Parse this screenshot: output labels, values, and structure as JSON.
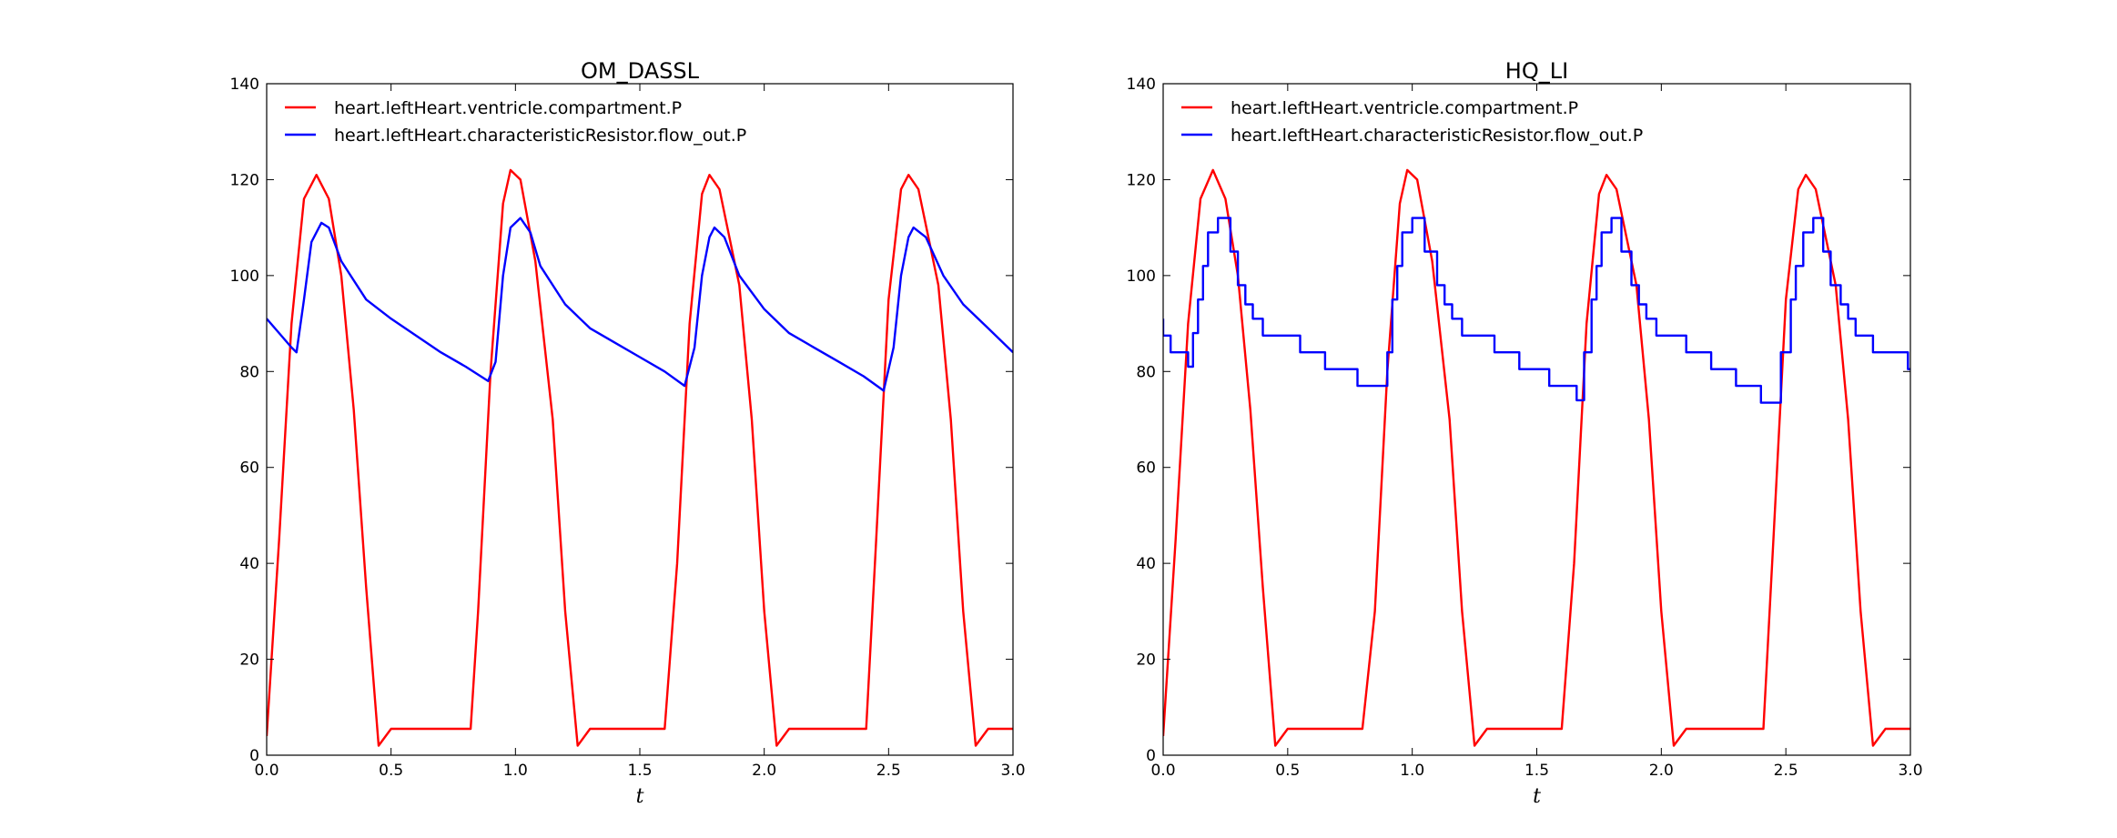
{
  "chart_data": [
    {
      "type": "line",
      "title": "OM_DASSL",
      "xlabel": "t",
      "ylabel": "",
      "xlim": [
        0.0,
        3.0
      ],
      "ylim": [
        0,
        140
      ],
      "xticks": [
        "0.0",
        "0.5",
        "1.0",
        "1.5",
        "2.0",
        "2.5",
        "3.0"
      ],
      "yticks": [
        "0",
        "20",
        "40",
        "60",
        "80",
        "100",
        "120",
        "140"
      ],
      "grid": false,
      "legend_position": "top-left",
      "series": [
        {
          "name": "heart.leftHeart.ventricle.compartment.P",
          "color": "#ff0000",
          "points": [
            [
              0.0,
              4
            ],
            [
              0.05,
              45
            ],
            [
              0.1,
              90
            ],
            [
              0.15,
              116
            ],
            [
              0.2,
              121
            ],
            [
              0.25,
              116
            ],
            [
              0.3,
              100
            ],
            [
              0.35,
              72
            ],
            [
              0.4,
              35
            ],
            [
              0.45,
              2
            ],
            [
              0.5,
              5.5
            ],
            [
              0.82,
              5.5
            ],
            [
              0.85,
              30
            ],
            [
              0.9,
              80
            ],
            [
              0.95,
              115
            ],
            [
              0.98,
              122
            ],
            [
              1.02,
              120
            ],
            [
              1.08,
              103
            ],
            [
              1.15,
              70
            ],
            [
              1.2,
              30
            ],
            [
              1.25,
              2
            ],
            [
              1.3,
              5.5
            ],
            [
              1.6,
              5.5
            ],
            [
              1.65,
              40
            ],
            [
              1.7,
              90
            ],
            [
              1.75,
              117
            ],
            [
              1.78,
              121
            ],
            [
              1.82,
              118
            ],
            [
              1.9,
              98
            ],
            [
              1.95,
              70
            ],
            [
              2.0,
              30
            ],
            [
              2.05,
              2
            ],
            [
              2.1,
              5.5
            ],
            [
              2.41,
              5.5
            ],
            [
              2.45,
              45
            ],
            [
              2.5,
              95
            ],
            [
              2.55,
              118
            ],
            [
              2.58,
              121
            ],
            [
              2.62,
              118
            ],
            [
              2.7,
              98
            ],
            [
              2.75,
              70
            ],
            [
              2.8,
              30
            ],
            [
              2.85,
              2
            ],
            [
              2.9,
              5.5
            ],
            [
              3.0,
              5.5
            ]
          ]
        },
        {
          "name": "heart.leftHeart.characteristicResistor.flow_out.P",
          "color": "#0000ff",
          "points": [
            [
              0.0,
              91
            ],
            [
              0.05,
              88
            ],
            [
              0.1,
              85
            ],
            [
              0.12,
              84
            ],
            [
              0.15,
              95
            ],
            [
              0.18,
              107
            ],
            [
              0.22,
              111
            ],
            [
              0.25,
              110
            ],
            [
              0.3,
              103
            ],
            [
              0.4,
              95
            ],
            [
              0.5,
              91
            ],
            [
              0.6,
              87.5
            ],
            [
              0.7,
              84
            ],
            [
              0.8,
              81
            ],
            [
              0.89,
              78
            ],
            [
              0.92,
              82
            ],
            [
              0.95,
              100
            ],
            [
              0.98,
              110
            ],
            [
              1.02,
              112
            ],
            [
              1.06,
              109
            ],
            [
              1.1,
              102
            ],
            [
              1.2,
              94
            ],
            [
              1.3,
              89
            ],
            [
              1.4,
              86
            ],
            [
              1.5,
              83
            ],
            [
              1.6,
              80
            ],
            [
              1.68,
              77
            ],
            [
              1.72,
              85
            ],
            [
              1.75,
              100
            ],
            [
              1.78,
              108
            ],
            [
              1.8,
              110
            ],
            [
              1.84,
              108
            ],
            [
              1.9,
              100
            ],
            [
              2.0,
              93
            ],
            [
              2.1,
              88
            ],
            [
              2.2,
              85
            ],
            [
              2.3,
              82
            ],
            [
              2.4,
              79
            ],
            [
              2.48,
              76
            ],
            [
              2.52,
              85
            ],
            [
              2.55,
              100
            ],
            [
              2.58,
              108
            ],
            [
              2.6,
              110
            ],
            [
              2.65,
              108
            ],
            [
              2.72,
              100
            ],
            [
              2.8,
              94
            ],
            [
              2.9,
              89
            ],
            [
              3.0,
              84
            ]
          ]
        }
      ]
    },
    {
      "type": "line",
      "title": "HQ_LI",
      "xlabel": "t",
      "ylabel": "",
      "xlim": [
        0.0,
        3.0
      ],
      "ylim": [
        0,
        140
      ],
      "xticks": [
        "0.0",
        "0.5",
        "1.0",
        "1.5",
        "2.0",
        "2.5",
        "3.0"
      ],
      "yticks": [
        "0",
        "20",
        "40",
        "60",
        "80",
        "100",
        "120",
        "140"
      ],
      "grid": false,
      "legend_position": "top-left",
      "series": [
        {
          "name": "heart.leftHeart.ventricle.compartment.P",
          "color": "#ff0000",
          "points": [
            [
              0.0,
              4
            ],
            [
              0.05,
              45
            ],
            [
              0.1,
              90
            ],
            [
              0.15,
              116
            ],
            [
              0.2,
              122
            ],
            [
              0.25,
              116
            ],
            [
              0.3,
              100
            ],
            [
              0.35,
              72
            ],
            [
              0.4,
              35
            ],
            [
              0.45,
              2
            ],
            [
              0.5,
              5.5
            ],
            [
              0.8,
              5.5
            ],
            [
              0.85,
              30
            ],
            [
              0.9,
              80
            ],
            [
              0.95,
              115
            ],
            [
              0.98,
              122
            ],
            [
              1.02,
              120
            ],
            [
              1.08,
              103
            ],
            [
              1.15,
              70
            ],
            [
              1.2,
              30
            ],
            [
              1.25,
              2
            ],
            [
              1.3,
              5.5
            ],
            [
              1.6,
              5.5
            ],
            [
              1.65,
              40
            ],
            [
              1.7,
              90
            ],
            [
              1.75,
              117
            ],
            [
              1.78,
              121
            ],
            [
              1.82,
              118
            ],
            [
              1.9,
              98
            ],
            [
              1.95,
              70
            ],
            [
              2.0,
              30
            ],
            [
              2.05,
              2
            ],
            [
              2.1,
              5.5
            ],
            [
              2.41,
              5.5
            ],
            [
              2.45,
              45
            ],
            [
              2.5,
              95
            ],
            [
              2.55,
              118
            ],
            [
              2.58,
              121
            ],
            [
              2.62,
              118
            ],
            [
              2.7,
              98
            ],
            [
              2.75,
              70
            ],
            [
              2.8,
              30
            ],
            [
              2.85,
              2
            ],
            [
              2.9,
              5.5
            ],
            [
              3.0,
              5.5
            ]
          ]
        },
        {
          "name": "heart.leftHeart.characteristicResistor.flow_out.P",
          "color": "#0000ff",
          "points": [
            [
              0.0,
              91
            ],
            [
              0.0,
              87.5
            ],
            [
              0.03,
              87.5
            ],
            [
              0.03,
              84
            ],
            [
              0.1,
              84
            ],
            [
              0.1,
              81
            ],
            [
              0.12,
              81
            ],
            [
              0.12,
              88
            ],
            [
              0.14,
              88
            ],
            [
              0.14,
              95
            ],
            [
              0.16,
              95
            ],
            [
              0.16,
              102
            ],
            [
              0.18,
              102
            ],
            [
              0.18,
              109
            ],
            [
              0.22,
              109
            ],
            [
              0.22,
              112
            ],
            [
              0.27,
              112
            ],
            [
              0.27,
              105
            ],
            [
              0.3,
              105
            ],
            [
              0.3,
              98
            ],
            [
              0.33,
              98
            ],
            [
              0.33,
              94
            ],
            [
              0.36,
              94
            ],
            [
              0.36,
              91
            ],
            [
              0.4,
              91
            ],
            [
              0.4,
              87.5
            ],
            [
              0.55,
              87.5
            ],
            [
              0.55,
              84
            ],
            [
              0.65,
              84
            ],
            [
              0.65,
              80.5
            ],
            [
              0.78,
              80.5
            ],
            [
              0.78,
              77
            ],
            [
              0.9,
              77
            ],
            [
              0.9,
              84
            ],
            [
              0.92,
              84
            ],
            [
              0.92,
              95
            ],
            [
              0.94,
              95
            ],
            [
              0.94,
              102
            ],
            [
              0.96,
              102
            ],
            [
              0.96,
              109
            ],
            [
              1.0,
              109
            ],
            [
              1.0,
              112
            ],
            [
              1.05,
              112
            ],
            [
              1.05,
              105
            ],
            [
              1.1,
              105
            ],
            [
              1.1,
              98
            ],
            [
              1.13,
              98
            ],
            [
              1.13,
              94
            ],
            [
              1.16,
              94
            ],
            [
              1.16,
              91
            ],
            [
              1.2,
              91
            ],
            [
              1.2,
              87.5
            ],
            [
              1.33,
              87.5
            ],
            [
              1.33,
              84
            ],
            [
              1.43,
              84
            ],
            [
              1.43,
              80.5
            ],
            [
              1.55,
              80.5
            ],
            [
              1.55,
              77
            ],
            [
              1.66,
              77
            ],
            [
              1.66,
              74
            ],
            [
              1.69,
              74
            ],
            [
              1.69,
              84
            ],
            [
              1.72,
              84
            ],
            [
              1.72,
              95
            ],
            [
              1.74,
              95
            ],
            [
              1.74,
              102
            ],
            [
              1.76,
              102
            ],
            [
              1.76,
              109
            ],
            [
              1.8,
              109
            ],
            [
              1.8,
              112
            ],
            [
              1.84,
              112
            ],
            [
              1.84,
              105
            ],
            [
              1.88,
              105
            ],
            [
              1.88,
              98
            ],
            [
              1.91,
              98
            ],
            [
              1.91,
              94
            ],
            [
              1.94,
              94
            ],
            [
              1.94,
              91
            ],
            [
              1.98,
              91
            ],
            [
              1.98,
              87.5
            ],
            [
              2.1,
              87.5
            ],
            [
              2.1,
              84
            ],
            [
              2.2,
              84
            ],
            [
              2.2,
              80.5
            ],
            [
              2.3,
              80.5
            ],
            [
              2.3,
              77
            ],
            [
              2.4,
              77
            ],
            [
              2.4,
              73.5
            ],
            [
              2.48,
              73.5
            ],
            [
              2.48,
              84
            ],
            [
              2.52,
              84
            ],
            [
              2.52,
              95
            ],
            [
              2.54,
              95
            ],
            [
              2.54,
              102
            ],
            [
              2.57,
              102
            ],
            [
              2.57,
              109
            ],
            [
              2.61,
              109
            ],
            [
              2.61,
              112
            ],
            [
              2.65,
              112
            ],
            [
              2.65,
              105
            ],
            [
              2.68,
              105
            ],
            [
              2.68,
              98
            ],
            [
              2.72,
              98
            ],
            [
              2.72,
              94
            ],
            [
              2.75,
              94
            ],
            [
              2.75,
              91
            ],
            [
              2.78,
              91
            ],
            [
              2.78,
              87.5
            ],
            [
              2.85,
              87.5
            ],
            [
              2.85,
              84
            ],
            [
              2.99,
              84
            ],
            [
              2.99,
              80.5
            ],
            [
              3.0,
              80.5
            ]
          ]
        }
      ]
    }
  ]
}
